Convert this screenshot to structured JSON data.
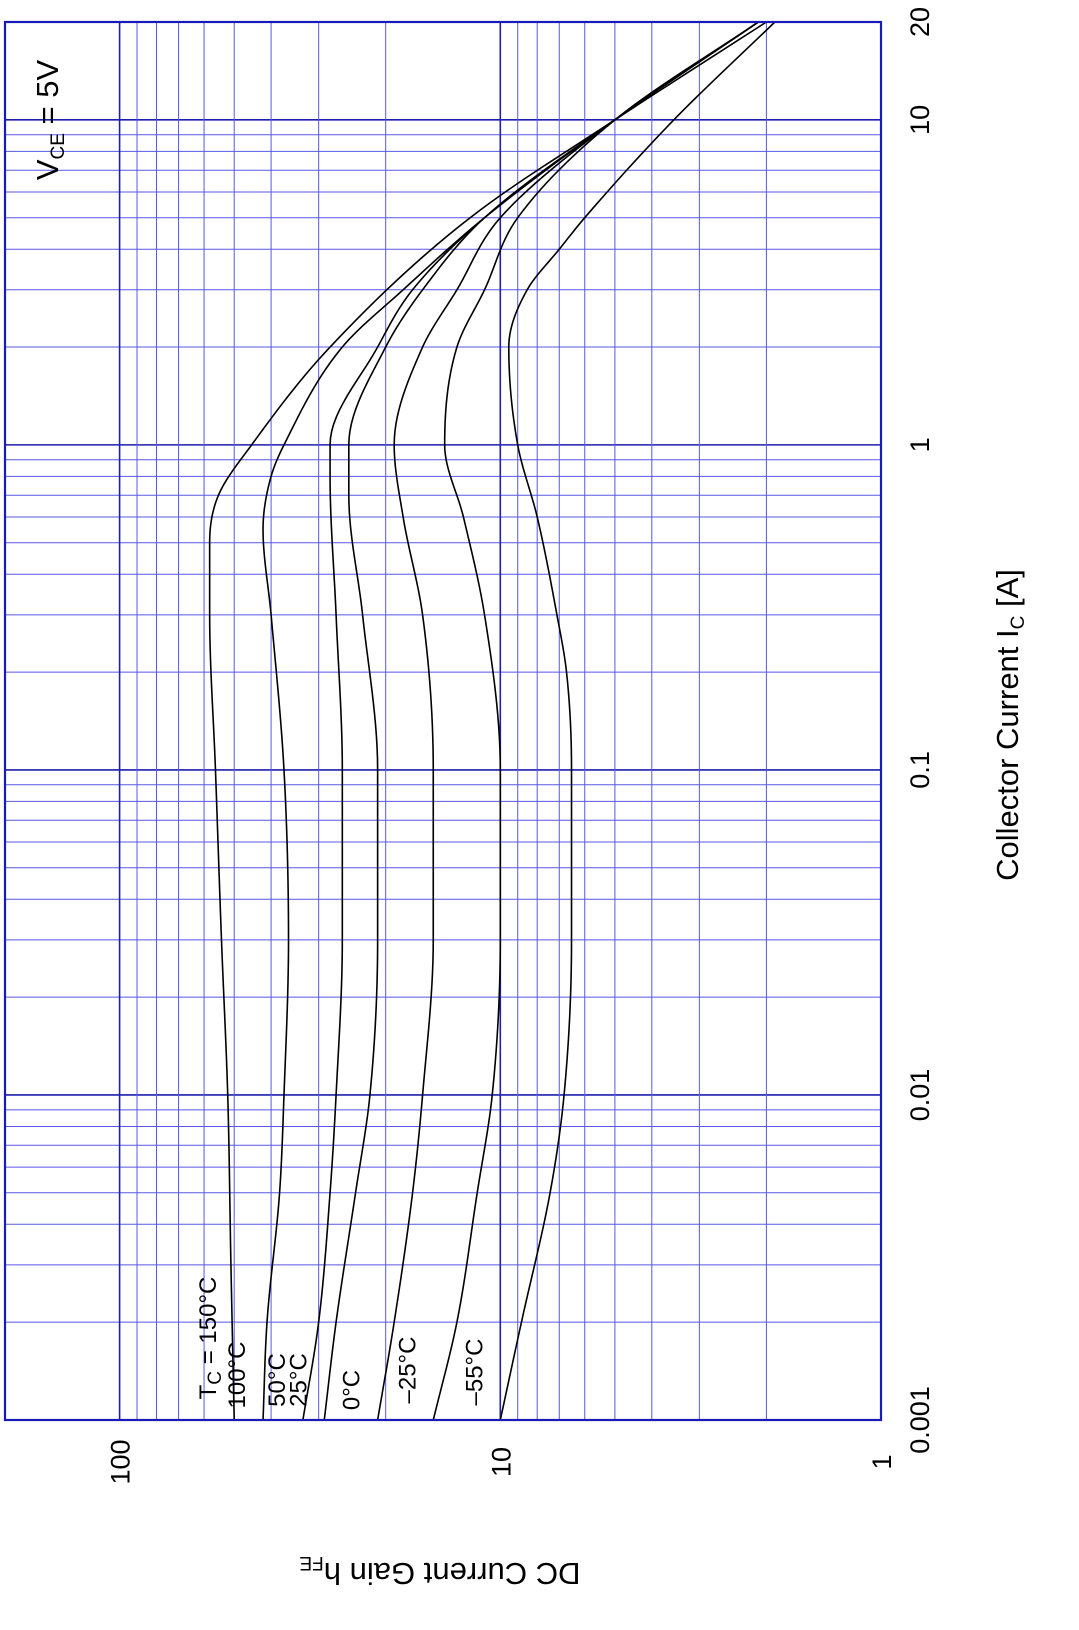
{
  "chart_data": {
    "type": "line",
    "orientation": "rotated 90° counter-clockwise (read with x along the right edge)",
    "x_scale": "log",
    "y_scale": "log",
    "xlim": [
      0.001,
      20
    ],
    "ylim": [
      1,
      200
    ],
    "grid": true,
    "x_ticks": [
      "0.001",
      "0.01",
      "0.1",
      "1",
      "10",
      "20"
    ],
    "y_ticks": [
      "1",
      "10",
      "100"
    ],
    "xlabel": {
      "main": "Collector Current  I",
      "sub": "C",
      "tail": "  [A]"
    },
    "ylabel": {
      "main": "DC Current Gain  h",
      "sub": "FE"
    },
    "annotation": {
      "main": "V",
      "sub": "CE",
      "tail": " = 5V"
    },
    "series": [
      {
        "name": "Tc = 150°C",
        "label_main": "T",
        "label_sub": "C",
        "label_tail": " = 150°C",
        "x": [
          0.001,
          0.003,
          0.01,
          0.03,
          0.1,
          0.3,
          0.5,
          0.7,
          1,
          2,
          5,
          10,
          20
        ],
        "y": [
          50,
          51,
          52,
          54,
          56,
          58,
          58,
          55,
          45,
          28,
          12,
          5,
          2.0
        ]
      },
      {
        "name": "100°C",
        "label_main": "100°C",
        "x": [
          0.001,
          0.002,
          0.005,
          0.01,
          0.03,
          0.1,
          0.3,
          0.55,
          0.8,
          1,
          2,
          3,
          5,
          10,
          20
        ],
        "y": [
          42,
          41,
          38,
          37,
          36,
          37,
          40,
          42,
          40,
          37,
          26,
          18,
          11,
          5,
          2.1
        ]
      },
      {
        "name": "50°C",
        "label_main": "50°C",
        "x": [
          0.001,
          0.002,
          0.005,
          0.01,
          0.03,
          0.1,
          0.3,
          0.8,
          1,
          2,
          3,
          5,
          10,
          20
        ],
        "y": [
          33,
          30,
          28,
          27,
          26,
          26,
          27,
          28,
          28,
          21,
          17,
          11,
          5,
          2.1
        ]
      },
      {
        "name": "25°C",
        "label_main": "25°C",
        "x": [
          0.001,
          0.002,
          0.005,
          0.01,
          0.03,
          0.1,
          0.3,
          0.7,
          1,
          2,
          3,
          5,
          10,
          20
        ],
        "y": [
          29,
          27,
          24,
          22,
          21,
          21,
          23,
          25,
          25,
          20,
          16,
          11,
          5,
          2.1
        ]
      },
      {
        "name": "0°C",
        "label_main": "0°C",
        "x": [
          0.001,
          0.002,
          0.005,
          0.01,
          0.03,
          0.1,
          0.3,
          0.6,
          1,
          2,
          3,
          5,
          10,
          20
        ],
        "y": [
          21,
          19,
          17,
          16,
          15,
          15,
          16,
          18,
          19,
          16,
          13,
          10,
          5,
          2.1
        ]
      },
      {
        "name": "-25°C",
        "label_main": "–25°C",
        "x": [
          0.001,
          0.002,
          0.005,
          0.01,
          0.03,
          0.1,
          0.3,
          0.6,
          1,
          2,
          3,
          5,
          10,
          20
        ],
        "y": [
          15,
          13,
          11.5,
          10.5,
          10,
          10,
          11,
          12.5,
          14,
          13,
          11,
          9,
          5,
          2.1
        ]
      },
      {
        "name": "-55°C",
        "label_main": "–55°C",
        "x": [
          0.001,
          0.002,
          0.005,
          0.01,
          0.03,
          0.1,
          0.2,
          0.3,
          0.6,
          1,
          2,
          3,
          4,
          5,
          10,
          20
        ],
        "y": [
          10,
          8.8,
          7.4,
          6.8,
          6.5,
          6.5,
          6.7,
          7.1,
          8.0,
          9.0,
          9.5,
          8.5,
          7.0,
          6.0,
          3.5,
          1.9
        ]
      }
    ]
  }
}
